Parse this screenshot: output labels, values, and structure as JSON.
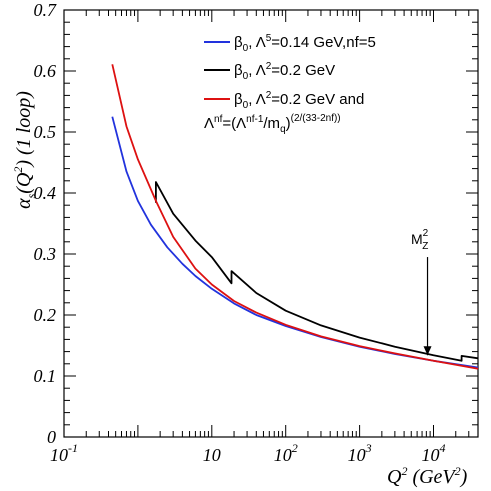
{
  "chart_data": {
    "type": "line",
    "xscale": "log",
    "xlim": [
      0.1,
      40000
    ],
    "ylim": [
      0,
      0.7
    ],
    "grid": false,
    "legend_position": "top-right",
    "x_ticks": [
      {
        "value": 0.1,
        "base": "10",
        "exp": "-1"
      },
      {
        "value": 10,
        "base": "10",
        "exp": ""
      },
      {
        "value": 100,
        "base": "10",
        "exp": "2"
      },
      {
        "value": 1000,
        "base": "10",
        "exp": "3"
      },
      {
        "value": 10000,
        "base": "10",
        "exp": "4"
      }
    ],
    "y_ticks": [
      {
        "value": 0,
        "label": "0"
      },
      {
        "value": 0.1,
        "label": "0.1"
      },
      {
        "value": 0.2,
        "label": "0.2"
      },
      {
        "value": 0.3,
        "label": "0.3"
      },
      {
        "value": 0.4,
        "label": "0.4"
      },
      {
        "value": 0.5,
        "label": "0.5"
      },
      {
        "value": 0.6,
        "label": "0.6"
      },
      {
        "value": 0.7,
        "label": "0.7"
      }
    ],
    "xlabel": {
      "main": "Q",
      "sup": "2",
      "rest": " (GeV",
      "sup2": "2",
      "end": ")"
    },
    "ylabel": {
      "a": "α",
      "sub": "s",
      "b": "(Q",
      "sup": "2",
      "c": ") (1 loop)"
    },
    "series": [
      {
        "name": "β0, Λ5=0.14 GeV,nf=5",
        "legend": {
          "a": "β",
          "sub": "0",
          "b": ", Λ",
          "sup": "5",
          "c": "=0.14 GeV,nf=5"
        },
        "color": "#2233dd",
        "x": [
          0.45,
          0.7,
          1.0,
          1.5,
          2.5,
          4,
          6,
          10,
          20,
          40,
          100,
          300,
          1000,
          3000,
          10000,
          40000
        ],
        "y": [
          0.525,
          0.435,
          0.387,
          0.348,
          0.311,
          0.284,
          0.264,
          0.243,
          0.219,
          0.2,
          0.182,
          0.164,
          0.148,
          0.136,
          0.125,
          0.114
        ]
      },
      {
        "name": "β0, Λ2=0.2 GeV",
        "legend": {
          "a": "β",
          "sub": "0",
          "b": ", Λ",
          "sup": "2",
          "c": "=0.2 GeV"
        },
        "color": "#000000",
        "x": [
          1.75,
          1.75,
          3,
          6,
          10,
          18.5,
          18.5,
          40,
          100,
          300,
          1000,
          3000,
          10000,
          24000,
          24000,
          40000
        ],
        "y": [
          0.384,
          0.418,
          0.366,
          0.322,
          0.295,
          0.252,
          0.272,
          0.236,
          0.207,
          0.183,
          0.163,
          0.148,
          0.134,
          0.125,
          0.133,
          0.129
        ]
      },
      {
        "name": "β0, Λ2=0.2 GeV and Λnf=(Λnf-1/mq)(2/(33-2nf))",
        "legend": {
          "a": "β",
          "sub": "0",
          "b": ", Λ",
          "sup": "2",
          "c": "=0.2 GeV and"
        },
        "legend2": {
          "a": "Λ",
          "sup": "nf",
          "b": "=(Λ",
          "sup2": "nf-1",
          "c": "/m",
          "sub": "q",
          "d": ")",
          "sup3": "(2/(33-2nf))"
        },
        "color": "#dd1111",
        "x": [
          0.45,
          0.7,
          1.0,
          1.75,
          3,
          6,
          10,
          20,
          40,
          100,
          300,
          1000,
          3000,
          10000,
          40000
        ],
        "y": [
          0.611,
          0.509,
          0.455,
          0.387,
          0.328,
          0.276,
          0.25,
          0.223,
          0.204,
          0.184,
          0.165,
          0.149,
          0.137,
          0.125,
          0.112
        ]
      }
    ],
    "annotation": {
      "main": "M",
      "sup": "2",
      "sub": "Z",
      "x": 8300,
      "y_tail": 0.295,
      "y_head": 0.134
    }
  }
}
